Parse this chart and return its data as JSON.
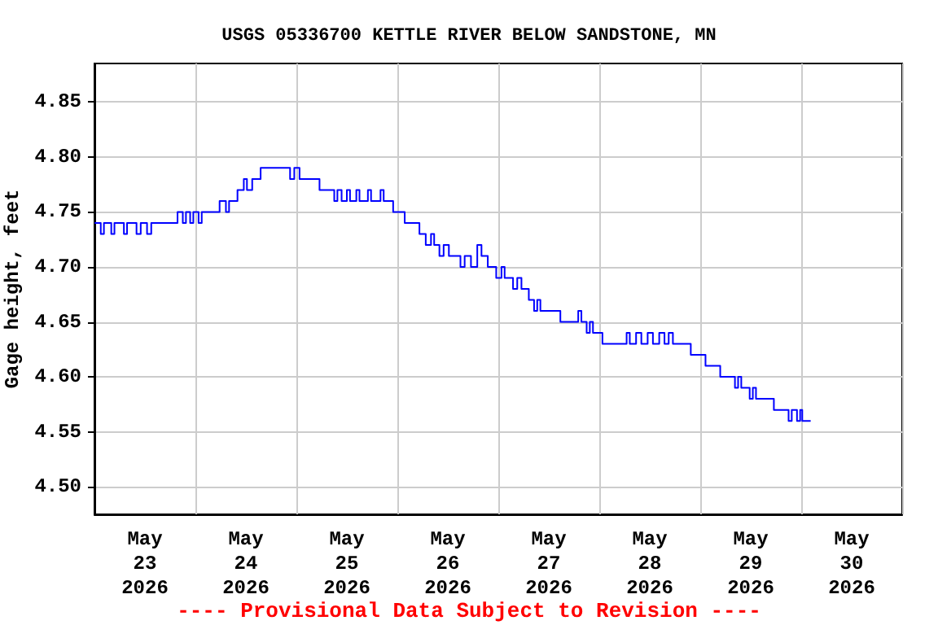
{
  "chart_data": {
    "type": "step",
    "title": "USGS 05336700 KETTLE RIVER BELOW SANDSTONE, MN",
    "ylabel": "Gage height, feet",
    "annotations": [
      "---- Provisional Data Subject to Revision ----"
    ],
    "grid": true,
    "marker": "none",
    "line_style": "solid",
    "xlim": [
      "2026-05-23T00:00",
      "2026-05-31T00:00"
    ],
    "xticks": [
      {
        "value": "2026-05-23T00:00",
        "label": null
      },
      {
        "value": "2026-05-23T12:00",
        "label": "May\n23\n2026"
      },
      {
        "value": "2026-05-24T00:00",
        "label": null
      },
      {
        "value": "2026-05-24T12:00",
        "label": "May\n24\n2026"
      },
      {
        "value": "2026-05-25T00:00",
        "label": null
      },
      {
        "value": "2026-05-25T12:00",
        "label": "May\n25\n2026"
      },
      {
        "value": "2026-05-26T00:00",
        "label": null
      },
      {
        "value": "2026-05-26T12:00",
        "label": "May\n26\n2026"
      },
      {
        "value": "2026-05-27T00:00",
        "label": null
      },
      {
        "value": "2026-05-27T12:00",
        "label": "May\n27\n2026"
      },
      {
        "value": "2026-05-28T00:00",
        "label": null
      },
      {
        "value": "2026-05-28T12:00",
        "label": "May\n28\n2026"
      },
      {
        "value": "2026-05-29T00:00",
        "label": null
      },
      {
        "value": "2026-05-29T12:00",
        "label": "May\n29\n2026"
      },
      {
        "value": "2026-05-30T00:00",
        "label": null
      },
      {
        "value": "2026-05-30T12:00",
        "label": "May\n30\n2026"
      },
      {
        "value": "2026-05-31T00:00",
        "label": null
      }
    ],
    "ylim": [
      4.475,
      4.885
    ],
    "yticks": [
      {
        "value": 4.5,
        "label": "4.50"
      },
      4.55,
      {
        "value": 4.6,
        "label": "4.60"
      },
      4.65,
      {
        "value": 4.7,
        "label": "4.70"
      },
      4.75,
      {
        "value": 4.8,
        "label": "4.80"
      },
      4.85
    ],
    "series": [
      {
        "color": "#0000ff",
        "x": [
          "2026-05-23T00:00",
          "2026-05-23T01:30",
          "2026-05-23T02:15",
          "2026-05-23T04:00",
          "2026-05-23T04:45",
          "2026-05-23T07:00",
          "2026-05-23T07:45",
          "2026-05-23T10:00",
          "2026-05-23T11:00",
          "2026-05-23T12:30",
          "2026-05-23T13:30",
          "2026-05-23T19:45",
          "2026-05-23T21:00",
          "2026-05-23T21:45",
          "2026-05-23T22:45",
          "2026-05-23T23:30",
          "2026-05-24T00:45",
          "2026-05-24T01:30",
          "2026-05-24T05:45",
          "2026-05-24T07:15",
          "2026-05-24T08:00",
          "2026-05-24T10:00",
          "2026-05-24T11:30",
          "2026-05-24T12:15",
          "2026-05-24T13:30",
          "2026-05-24T15:30",
          "2026-05-24T22:30",
          "2026-05-24T23:30",
          "2026-05-25T00:45",
          "2026-05-25T05:30",
          "2026-05-25T09:00",
          "2026-05-25T09:45",
          "2026-05-25T10:45",
          "2026-05-25T12:00",
          "2026-05-25T12:45",
          "2026-05-25T14:15",
          "2026-05-25T15:00",
          "2026-05-25T17:00",
          "2026-05-25T17:45",
          "2026-05-25T20:00",
          "2026-05-25T20:45",
          "2026-05-25T23:00",
          "2026-05-26T01:45",
          "2026-05-26T05:15",
          "2026-05-26T06:45",
          "2026-05-26T08:00",
          "2026-05-26T08:45",
          "2026-05-26T10:00",
          "2026-05-26T11:00",
          "2026-05-26T12:15",
          "2026-05-26T15:00",
          "2026-05-26T16:00",
          "2026-05-26T17:30",
          "2026-05-26T19:00",
          "2026-05-26T20:00",
          "2026-05-26T21:30",
          "2026-05-26T23:30",
          "2026-05-27T00:45",
          "2026-05-27T01:30",
          "2026-05-27T03:30",
          "2026-05-27T04:30",
          "2026-05-27T05:30",
          "2026-05-27T07:15",
          "2026-05-27T08:30",
          "2026-05-27T09:15",
          "2026-05-27T10:00",
          "2026-05-27T14:45",
          "2026-05-27T19:00",
          "2026-05-27T19:45",
          "2026-05-27T21:00",
          "2026-05-27T21:45",
          "2026-05-27T22:30",
          "2026-05-28T00:45",
          "2026-05-28T06:30",
          "2026-05-28T07:15",
          "2026-05-28T08:45",
          "2026-05-28T10:00",
          "2026-05-28T11:30",
          "2026-05-28T12:45",
          "2026-05-28T14:15",
          "2026-05-28T15:30",
          "2026-05-28T16:30",
          "2026-05-28T17:30",
          "2026-05-28T21:45",
          "2026-05-29T01:15",
          "2026-05-29T04:45",
          "2026-05-29T08:15",
          "2026-05-29T09:00",
          "2026-05-29T09:45",
          "2026-05-29T11:45",
          "2026-05-29T12:30",
          "2026-05-29T13:15",
          "2026-05-29T17:30",
          "2026-05-29T21:00",
          "2026-05-29T21:45",
          "2026-05-29T23:00",
          "2026-05-29T23:45",
          "2026-05-30T00:15",
          "2026-05-30T02:15"
        ],
        "values": [
          4.74,
          4.73,
          4.74,
          4.73,
          4.74,
          4.73,
          4.74,
          4.73,
          4.74,
          4.73,
          4.74,
          4.75,
          4.74,
          4.75,
          4.74,
          4.75,
          4.74,
          4.75,
          4.76,
          4.75,
          4.76,
          4.77,
          4.78,
          4.77,
          4.78,
          4.79,
          4.78,
          4.79,
          4.78,
          4.77,
          4.76,
          4.77,
          4.76,
          4.77,
          4.76,
          4.77,
          4.76,
          4.77,
          4.76,
          4.77,
          4.76,
          4.75,
          4.74,
          4.73,
          4.72,
          4.73,
          4.72,
          4.71,
          4.72,
          4.71,
          4.7,
          4.71,
          4.7,
          4.72,
          4.71,
          4.7,
          4.69,
          4.7,
          4.69,
          4.68,
          4.69,
          4.68,
          4.67,
          4.66,
          4.67,
          4.66,
          4.65,
          4.66,
          4.65,
          4.64,
          4.65,
          4.64,
          4.63,
          4.64,
          4.63,
          4.64,
          4.63,
          4.64,
          4.63,
          4.64,
          4.63,
          4.64,
          4.63,
          4.62,
          4.61,
          4.6,
          4.59,
          4.6,
          4.59,
          4.58,
          4.59,
          4.58,
          4.57,
          4.56,
          4.57,
          4.56,
          4.57,
          4.56,
          4.56
        ]
      }
    ]
  }
}
